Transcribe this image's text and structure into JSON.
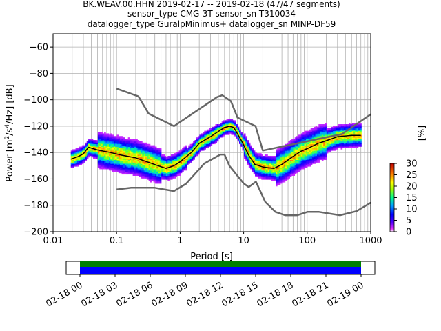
{
  "chart_data": {
    "type": "heatmap",
    "title_lines": [
      "BK.WEAV.00.HHN   2019-02-17 -- 2019-02-18  (47/47 segments)",
      "sensor_type CMG-3T sensor_sn T310034",
      "datalogger_type GuralpMinimus+ datalogger_sn MINP-DF59"
    ],
    "xlabel": "Period [s]",
    "ylabel_parts": {
      "pre": "Power [m",
      "sup1": "2",
      "mid": "/s",
      "sup2": "4",
      "post": "/Hz] [dB]"
    },
    "xscale": "log",
    "xlim": [
      0.01,
      1000
    ],
    "ylim": [
      -200,
      -50
    ],
    "xticks": [
      {
        "value": 0.01,
        "label": "0.01"
      },
      {
        "value": 0.1,
        "label": "0.1"
      },
      {
        "value": 1,
        "label": "1"
      },
      {
        "value": 10,
        "label": "10"
      },
      {
        "value": 100,
        "label": "100"
      },
      {
        "value": 1000,
        "label": "1000"
      }
    ],
    "yticks": [
      {
        "value": -60,
        "label": "−60"
      },
      {
        "value": -80,
        "label": "−80"
      },
      {
        "value": -100,
        "label": "−100"
      },
      {
        "value": -120,
        "label": "−120"
      },
      {
        "value": -140,
        "label": "−140"
      },
      {
        "value": -160,
        "label": "−160"
      },
      {
        "value": -180,
        "label": "−180"
      },
      {
        "value": -200,
        "label": "−200"
      }
    ],
    "grid": true,
    "colorbar": {
      "label": "[%]",
      "range": [
        0,
        30
      ],
      "ticks": [
        {
          "value": 0,
          "label": "0"
        },
        {
          "value": 5,
          "label": "5"
        },
        {
          "value": 10,
          "label": "10"
        },
        {
          "value": 15,
          "label": "15"
        },
        {
          "value": 20,
          "label": "20"
        },
        {
          "value": 25,
          "label": "25"
        },
        {
          "value": 30,
          "label": "30"
        }
      ]
    },
    "noise_models": {
      "high": [
        [
          0.1,
          -91.5
        ],
        [
          0.22,
          -97.4
        ],
        [
          0.32,
          -110.5
        ],
        [
          0.8,
          -120
        ],
        [
          3.8,
          -98
        ],
        [
          4.6,
          -96.5
        ],
        [
          6.3,
          -101
        ],
        [
          8.0,
          -113.5
        ],
        [
          15.4,
          -120
        ],
        [
          20,
          -138.5
        ],
        [
          354,
          -126
        ],
        [
          1000,
          -111
        ]
      ],
      "low": [
        [
          0.1,
          -168
        ],
        [
          0.17,
          -166.7
        ],
        [
          0.4,
          -166.7
        ],
        [
          0.8,
          -169.2
        ],
        [
          1.24,
          -163.7
        ],
        [
          2.4,
          -148.3
        ],
        [
          4.3,
          -141.5
        ],
        [
          5.0,
          -141.5
        ],
        [
          6.0,
          -150.2
        ],
        [
          10,
          -163.4
        ],
        [
          12,
          -166.2
        ],
        [
          15.6,
          -162.1
        ],
        [
          21.9,
          -177.5
        ],
        [
          31.6,
          -185
        ],
        [
          45,
          -187.5
        ],
        [
          70,
          -187.5
        ],
        [
          101,
          -185
        ],
        [
          154,
          -185
        ],
        [
          328,
          -187.5
        ],
        [
          600,
          -184.4
        ],
        [
          1000,
          -178
        ]
      ]
    },
    "mean_psd": [
      [
        0.019,
        -145
      ],
      [
        0.025,
        -143
      ],
      [
        0.03,
        -141
      ],
      [
        0.036,
        -136
      ],
      [
        0.05,
        -138
      ],
      [
        0.08,
        -140
      ],
      [
        0.12,
        -142
      ],
      [
        0.2,
        -144
      ],
      [
        0.3,
        -147
      ],
      [
        0.45,
        -150
      ],
      [
        0.6,
        -152
      ],
      [
        0.8,
        -150
      ],
      [
        1.0,
        -147
      ],
      [
        1.5,
        -140
      ],
      [
        2,
        -133
      ],
      [
        3,
        -128
      ],
      [
        4,
        -124
      ],
      [
        5,
        -121
      ],
      [
        6,
        -120
      ],
      [
        7,
        -121
      ],
      [
        9,
        -130
      ],
      [
        12,
        -142
      ],
      [
        15,
        -149
      ],
      [
        20,
        -151
      ],
      [
        30,
        -152
      ],
      [
        40,
        -149
      ],
      [
        60,
        -143
      ],
      [
        80,
        -139
      ],
      [
        100,
        -137
      ],
      [
        150,
        -133
      ],
      [
        200,
        -131
      ],
      [
        300,
        -128
      ],
      [
        500,
        -127
      ],
      [
        700,
        -127
      ]
    ],
    "time_axis": {
      "range_hours": [
        0,
        24
      ],
      "ticks": [
        {
          "hour": 0,
          "label": "02-18 00"
        },
        {
          "hour": 3,
          "label": "02-18 03"
        },
        {
          "hour": 6,
          "label": "02-18 06"
        },
        {
          "hour": 9,
          "label": "02-18 09"
        },
        {
          "hour": 12,
          "label": "02-18 12"
        },
        {
          "hour": 15,
          "label": "02-18 15"
        },
        {
          "hour": 18,
          "label": "02-18 18"
        },
        {
          "hour": 21,
          "label": "02-18 21"
        },
        {
          "hour": 24,
          "label": "02-19 00"
        }
      ],
      "coverage_colors": [
        "#008000",
        "#0000ff"
      ]
    }
  }
}
